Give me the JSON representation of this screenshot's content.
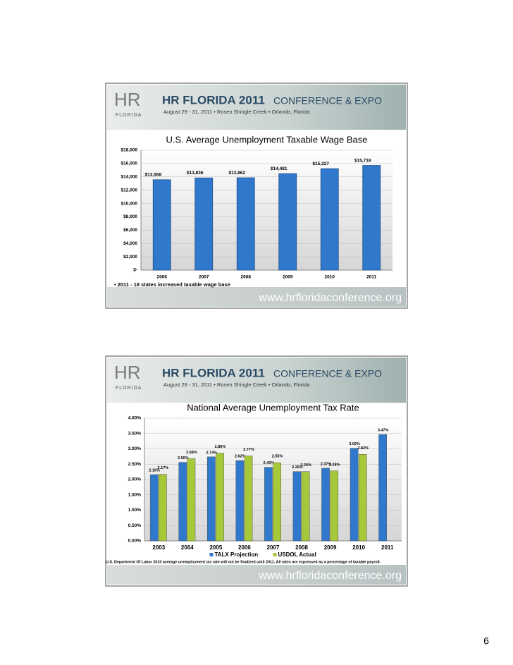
{
  "banner": {
    "logo": "HR",
    "logo_sub": "FLORIDA",
    "title": "HR FLORIDA 2011",
    "subtitle": "CONFERENCE & EXPO",
    "details": "August 29 - 31, 2011  •  Rosen Shingle Creek  •  Orlando, Florida",
    "url": "www.hrfloridaconference.org"
  },
  "chart_data": [
    {
      "type": "bar",
      "title": "U.S. Average Unemployment Taxable Wage Base",
      "categories": [
        "2006",
        "2007",
        "2008",
        "2009",
        "2010",
        "2011"
      ],
      "values": [
        13568,
        13836,
        13862,
        14481,
        15227,
        15718
      ],
      "value_labels": [
        "$13,568",
        "$13,836",
        "$13,862",
        "$14,481",
        "$15,227",
        "$15,718"
      ],
      "color": "#2f78cc",
      "ylim": [
        0,
        18000
      ],
      "yticks": [
        {
          "value": 0,
          "label": "$-"
        },
        {
          "value": 2000,
          "label": "$2,000"
        },
        {
          "value": 4000,
          "label": "$4,000"
        },
        {
          "value": 6000,
          "label": "$6,000"
        },
        {
          "value": 8000,
          "label": "$8,000"
        },
        {
          "value": 10000,
          "label": "$10,000"
        },
        {
          "value": 12000,
          "label": "$12,000"
        },
        {
          "value": 14000,
          "label": "$14,000"
        },
        {
          "value": 16000,
          "label": "$16,000"
        },
        {
          "value": 18000,
          "label": "$18,000"
        }
      ],
      "grid": true,
      "annotation": "•    2011 - 18 states increased taxable wage base"
    },
    {
      "type": "grouped_bar",
      "title": "National Average Unemployment Tax Rate",
      "categories": [
        "2003",
        "2004",
        "2005",
        "2006",
        "2007",
        "2008",
        "2009",
        "2010",
        "2011"
      ],
      "series": [
        {
          "name": "TALX Projection",
          "color": "#2f78cc",
          "values": [
            2.16,
            2.56,
            2.74,
            2.62,
            2.4,
            2.26,
            2.37,
            3.02,
            3.47
          ],
          "value_labels": [
            "2.16%",
            "2.56%",
            "2.74%",
            "2.62%",
            "2.40%",
            "2.26%",
            "2.37%",
            "3.02%",
            "3.47%"
          ]
        },
        {
          "name": "USDOL Actual",
          "color": "#a6c93a",
          "values": [
            2.17,
            2.68,
            2.86,
            2.77,
            2.55,
            2.26,
            2.28,
            2.82,
            null
          ],
          "value_labels": [
            "2.17%",
            "2.68%",
            "2.86%",
            "2.77%",
            "2.55%",
            "2.26%",
            "2.28%",
            "2.82%",
            null
          ]
        }
      ],
      "ylim": [
        0,
        4
      ],
      "yticks": [
        {
          "value": 0,
          "label": "0.00%"
        },
        {
          "value": 0.5,
          "label": "0.50%"
        },
        {
          "value": 1,
          "label": "1.00%"
        },
        {
          "value": 1.5,
          "label": "1.50%"
        },
        {
          "value": 2,
          "label": "2.00%"
        },
        {
          "value": 2.5,
          "label": "2.50%"
        },
        {
          "value": 3,
          "label": "3.00%"
        },
        {
          "value": 3.5,
          "label": "3.50%"
        },
        {
          "value": 4,
          "label": "4.00%"
        }
      ],
      "grid": true,
      "legend": "bottom",
      "footnote": "U.S. Department Of Labor 2010 average unemployment tax rate will not be finalized until 2011. All rates are expressed as a percentage of taxable payroll."
    }
  ],
  "page_number": "6"
}
